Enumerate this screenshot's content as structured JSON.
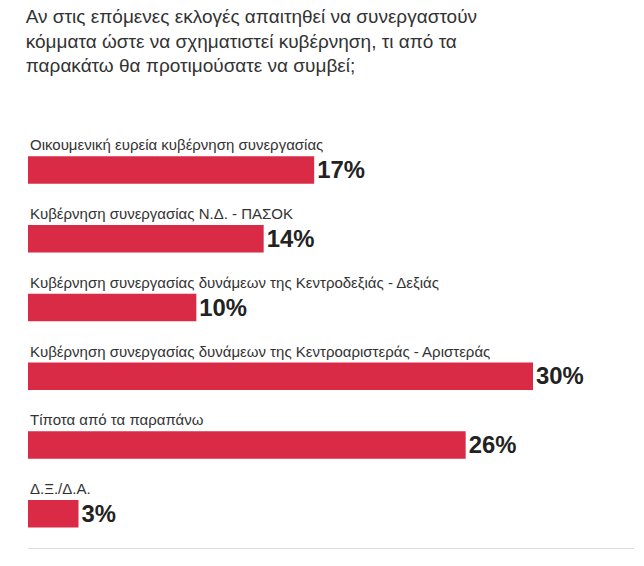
{
  "chart_data": {
    "type": "bar",
    "orientation": "horizontal",
    "title": "Αν στις επόμενες εκλογές απαιτηθεί να συνεργαστούν κόμματα ώστε να σχηματιστεί κυβέρνηση, τι από τα παρακάτω θα προτιμούσατε να συμβεί;",
    "categories": [
      "Οικουμενική ευρεία κυβέρνηση συνεργασίας",
      "Κυβέρνηση συνεργασίας Ν.Δ. - ΠΑΣΟΚ",
      "Κυβέρνηση συνεργασίας δυνάμεων της Κεντροδεξιάς - Δεξιάς",
      "Κυβέρνηση συνεργασίας δυνάμεων της Κεντροαριστεράς - Αριστεράς",
      "Τίποτα από τα παραπάνω",
      "Δ.Ξ./Δ.Α."
    ],
    "values": [
      17,
      14,
      10,
      30,
      26,
      3
    ],
    "value_labels": [
      "17%",
      "14%",
      "10%",
      "30%",
      "26%",
      "3%"
    ],
    "color": "#d92b45",
    "xlim": [
      0,
      36
    ],
    "data_labels": true,
    "tick_labels": false,
    "grid": false
  }
}
